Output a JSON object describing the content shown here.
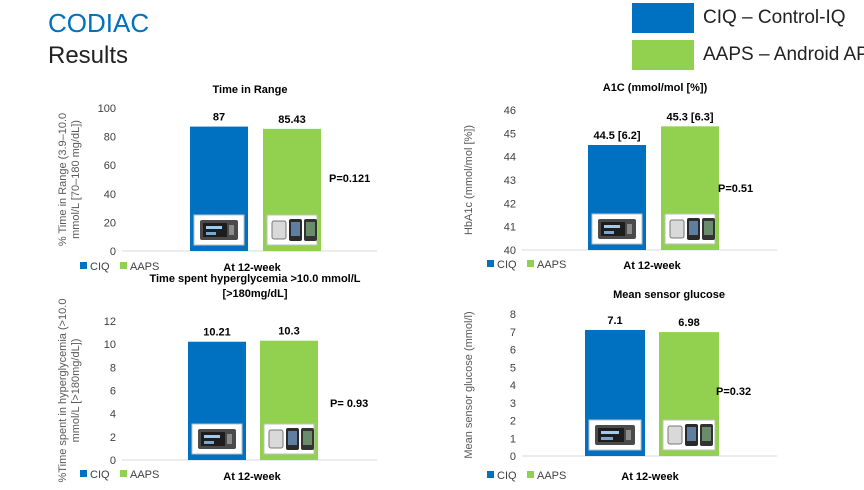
{
  "slide": {
    "title": "CODIAC",
    "subtitle": "Results",
    "legend": [
      {
        "label": "CIQ – Control-IQ",
        "color": "#0070c0"
      },
      {
        "label": "AAPS – Android APS",
        "color": "#92d050"
      }
    ]
  },
  "chart_data": [
    {
      "type": "bar",
      "title": "Time in Range",
      "ylabel": "% Time in Range (3.9–10.0 mmol/L [70–180 mg/dL])",
      "xlabel": "At 12-week",
      "categories": [
        "At 12-week"
      ],
      "series": [
        {
          "name": "CIQ",
          "values": [
            87
          ],
          "label": "87",
          "color": "#0070c0"
        },
        {
          "name": "AAPS",
          "values": [
            85.43
          ],
          "label": "85.43",
          "color": "#92d050"
        }
      ],
      "ylim": [
        0,
        100
      ],
      "yticks": [
        0,
        20,
        40,
        60,
        80,
        100
      ],
      "annotation": "P=0.121",
      "legend_position": "bottom-left"
    },
    {
      "type": "bar",
      "title": "A1C (mmol/mol [%])",
      "ylabel": "HbA1c (mmol/mol [%])",
      "xlabel": "At 12-week",
      "categories": [
        "At 12-week"
      ],
      "series": [
        {
          "name": "CIQ",
          "values": [
            44.5
          ],
          "label": "44.5 [6.2]",
          "color": "#0070c0"
        },
        {
          "name": "AAPS",
          "values": [
            45.3
          ],
          "label": "45.3 [6.3]",
          "color": "#92d050"
        }
      ],
      "ylim": [
        40,
        46
      ],
      "yticks": [
        40,
        41,
        42,
        43,
        44,
        45,
        46
      ],
      "annotation": "P=0.51",
      "legend_position": "bottom-left"
    },
    {
      "type": "bar",
      "title": "Time spent hyperglycemia >10.0 mmol/L [>180mg/dL]",
      "ylabel": "%Time spent in hyperglycemia (>10.0 mmol/L [>180mg/dL])",
      "xlabel": "At 12-week",
      "categories": [
        "At 12-week"
      ],
      "series": [
        {
          "name": "CIQ",
          "values": [
            10.21
          ],
          "label": "10.21",
          "color": "#0070c0"
        },
        {
          "name": "AAPS",
          "values": [
            10.3
          ],
          "label": "10.3",
          "color": "#92d050"
        }
      ],
      "ylim": [
        0,
        12
      ],
      "yticks": [
        0,
        2,
        4,
        6,
        8,
        10,
        12
      ],
      "annotation": "P= 0.93",
      "legend_position": "bottom-left"
    },
    {
      "type": "bar",
      "title": "Mean sensor glucose",
      "ylabel": "Mean sensor glucose (mmol/l)",
      "xlabel": "At 12-week",
      "categories": [
        "At 12-week"
      ],
      "series": [
        {
          "name": "CIQ",
          "values": [
            7.1
          ],
          "label": "7.1",
          "color": "#0070c0"
        },
        {
          "name": "AAPS",
          "values": [
            6.98
          ],
          "label": "6.98",
          "color": "#92d050"
        }
      ],
      "ylim": [
        0,
        8
      ],
      "yticks": [
        0,
        1,
        2,
        3,
        4,
        5,
        6,
        7,
        8
      ],
      "annotation": "P=0.32",
      "legend_position": "bottom-left"
    }
  ]
}
